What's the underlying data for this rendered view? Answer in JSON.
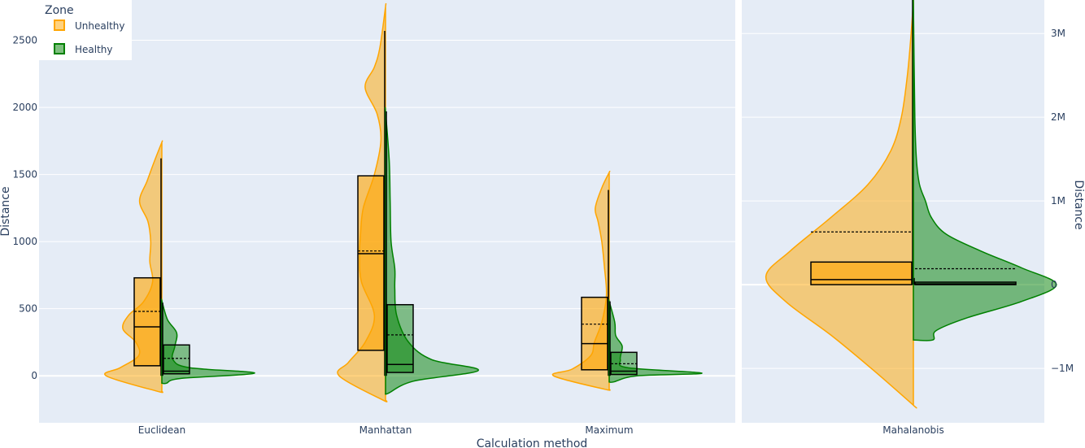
{
  "chart_data": {
    "type": "violin",
    "legend": {
      "title": "Zone",
      "placement": "top-left",
      "entries": [
        {
          "name": "Unhealthy",
          "color": "#FFA500"
        },
        {
          "name": "Healthy",
          "color": "#008000"
        }
      ]
    },
    "xlabel": "Calculation method",
    "panels": [
      {
        "id": "left",
        "categories": [
          "Euclidean",
          "Manhattan",
          "Maximum"
        ],
        "ylabel": "Distance",
        "ylim": [
          -350,
          2800
        ],
        "yticks": [
          0,
          500,
          1000,
          1500,
          2000,
          2500
        ],
        "ytick_labels": [
          "0",
          "500",
          "1000",
          "1500",
          "2000",
          "2500"
        ],
        "series": [
          {
            "name": "Unhealthy",
            "side": "negative",
            "boxes": [
              {
                "min": 0,
                "q1": 75,
                "median": 365,
                "mean": 480,
                "q3": 730,
                "max": 1620,
                "kde_range": [
                  -115,
                  1740
                ],
                "density": [
                  [
                    -115,
                    0.05
                  ],
                  [
                    0,
                    0.6
                  ],
                  [
                    60,
                    0.45
                  ],
                  [
                    150,
                    0.25
                  ],
                  [
                    250,
                    0.28
                  ],
                  [
                    350,
                    0.42
                  ],
                  [
                    450,
                    0.36
                  ],
                  [
                    550,
                    0.2
                  ],
                  [
                    700,
                    0.1
                  ],
                  [
                    850,
                    0.13
                  ],
                  [
                    1000,
                    0.12
                  ],
                  [
                    1150,
                    0.15
                  ],
                  [
                    1300,
                    0.24
                  ],
                  [
                    1450,
                    0.16
                  ],
                  [
                    1600,
                    0.08
                  ],
                  [
                    1740,
                    0
                  ]
                ]
              },
              {
                "min": 0,
                "q1": 190,
                "median": 910,
                "mean": 930,
                "q3": 1490,
                "max": 2570,
                "kde_range": [
                  -180,
                  2750
                ],
                "density": [
                  [
                    -180,
                    0.03
                  ],
                  [
                    0,
                    0.5
                  ],
                  [
                    100,
                    0.4
                  ],
                  [
                    250,
                    0.22
                  ],
                  [
                    450,
                    0.12
                  ],
                  [
                    700,
                    0.26
                  ],
                  [
                    900,
                    0.28
                  ],
                  [
                    1050,
                    0.27
                  ],
                  [
                    1250,
                    0.24
                  ],
                  [
                    1500,
                    0.12
                  ],
                  [
                    1750,
                    0.05
                  ],
                  [
                    1950,
                    0.09
                  ],
                  [
                    2150,
                    0.22
                  ],
                  [
                    2300,
                    0.12
                  ],
                  [
                    2450,
                    0.06
                  ],
                  [
                    2750,
                    0
                  ]
                ]
              },
              {
                "min": 0,
                "q1": 45,
                "median": 240,
                "mean": 385,
                "q3": 585,
                "max": 1385,
                "kde_range": [
                  -100,
                  1515
                ],
                "density": [
                  [
                    -100,
                    0.05
                  ],
                  [
                    0,
                    0.6
                  ],
                  [
                    50,
                    0.4
                  ],
                  [
                    150,
                    0.2
                  ],
                  [
                    250,
                    0.16
                  ],
                  [
                    400,
                    0.08
                  ],
                  [
                    600,
                    0.03
                  ],
                  [
                    800,
                    0.05
                  ],
                  [
                    1000,
                    0.08
                  ],
                  [
                    1150,
                    0.12
                  ],
                  [
                    1250,
                    0.15
                  ],
                  [
                    1400,
                    0.08
                  ],
                  [
                    1515,
                    0
                  ]
                ]
              }
            ]
          },
          {
            "name": "Healthy",
            "side": "positive",
            "boxes": [
              {
                "min": 0,
                "q1": 15,
                "median": 35,
                "mean": 130,
                "q3": 230,
                "max": 545,
                "kde_range": [
                  -55,
                  560
                ],
                "density": [
                  [
                    -55,
                    0.05
                  ],
                  [
                    -20,
                    0.2
                  ],
                  [
                    20,
                    1.0
                  ],
                  [
                    60,
                    0.3
                  ],
                  [
                    120,
                    0.12
                  ],
                  [
                    220,
                    0.14
                  ],
                  [
                    320,
                    0.16
                  ],
                  [
                    420,
                    0.06
                  ],
                  [
                    560,
                    0
                  ]
                ]
              },
              {
                "min": 0,
                "q1": 25,
                "median": 85,
                "mean": 305,
                "q3": 530,
                "max": 1970,
                "kde_range": [
                  -130,
                  1970
                ],
                "density": [
                  [
                    -130,
                    0.03
                  ],
                  [
                    -40,
                    0.3
                  ],
                  [
                    40,
                    1.0
                  ],
                  [
                    120,
                    0.5
                  ],
                  [
                    250,
                    0.25
                  ],
                  [
                    450,
                    0.12
                  ],
                  [
                    650,
                    0.1
                  ],
                  [
                    800,
                    0.1
                  ],
                  [
                    1000,
                    0.06
                  ],
                  [
                    1300,
                    0.05
                  ],
                  [
                    1600,
                    0.04
                  ],
                  [
                    1970,
                    0
                  ]
                ]
              },
              {
                "min": 0,
                "q1": 10,
                "median": 35,
                "mean": 90,
                "q3": 175,
                "max": 555,
                "kde_range": [
                  -45,
                  555
                ],
                "density": [
                  [
                    -45,
                    0.05
                  ],
                  [
                    0,
                    0.3
                  ],
                  [
                    20,
                    1.0
                  ],
                  [
                    60,
                    0.2
                  ],
                  [
                    120,
                    0.12
                  ],
                  [
                    220,
                    0.14
                  ],
                  [
                    300,
                    0.07
                  ],
                  [
                    400,
                    0.06
                  ],
                  [
                    555,
                    0
                  ]
                ]
              }
            ]
          }
        ]
      },
      {
        "id": "right",
        "categories": [
          "Mahalanobis"
        ],
        "ylabel": "Distance",
        "ylim": [
          -1650000,
          3400000
        ],
        "yticks": [
          -1000000,
          0,
          1000000,
          2000000,
          3000000
        ],
        "ytick_labels": [
          "−1M",
          "0",
          "1M",
          "2M",
          "3M"
        ],
        "series": [
          {
            "name": "Unhealthy",
            "side": "negative",
            "boxes": [
              {
                "min": 0,
                "q1": 0,
                "median": 60000,
                "mean": 630000,
                "q3": 270000,
                "max": 3400000,
                "kde_range": [
                  -1440000,
                  3400000
                ],
                "density": [
                  [
                    -1440000,
                    0
                  ],
                  [
                    -1000000,
                    0.28
                  ],
                  [
                    -600000,
                    0.55
                  ],
                  [
                    -200000,
                    0.85
                  ],
                  [
                    100000,
                    0.98
                  ],
                  [
                    400000,
                    0.82
                  ],
                  [
                    800000,
                    0.55
                  ],
                  [
                    1200000,
                    0.3
                  ],
                  [
                    1600000,
                    0.15
                  ],
                  [
                    2000000,
                    0.08
                  ],
                  [
                    2500000,
                    0.04
                  ],
                  [
                    3000000,
                    0.015
                  ],
                  [
                    3400000,
                    0
                  ]
                ]
              }
            ]
          },
          {
            "name": "Healthy",
            "side": "positive",
            "boxes": [
              {
                "min": 0,
                "q1": 0,
                "median": 10000,
                "mean": 190000,
                "q3": 30000,
                "max": 80000,
                "kde_range": [
                  -660000,
                  3400000
                ],
                "density": [
                  [
                    -660000,
                    0.13
                  ],
                  [
                    -550000,
                    0.15
                  ],
                  [
                    -400000,
                    0.35
                  ],
                  [
                    -200000,
                    0.72
                  ],
                  [
                    0,
                    0.95
                  ],
                  [
                    200000,
                    0.72
                  ],
                  [
                    400000,
                    0.45
                  ],
                  [
                    600000,
                    0.22
                  ],
                  [
                    800000,
                    0.12
                  ],
                  [
                    1000000,
                    0.08
                  ],
                  [
                    1200000,
                    0.04
                  ],
                  [
                    1500000,
                    0.02
                  ],
                  [
                    2000000,
                    0.01
                  ],
                  [
                    3400000,
                    0
                  ]
                ]
              }
            ]
          }
        ]
      }
    ]
  }
}
